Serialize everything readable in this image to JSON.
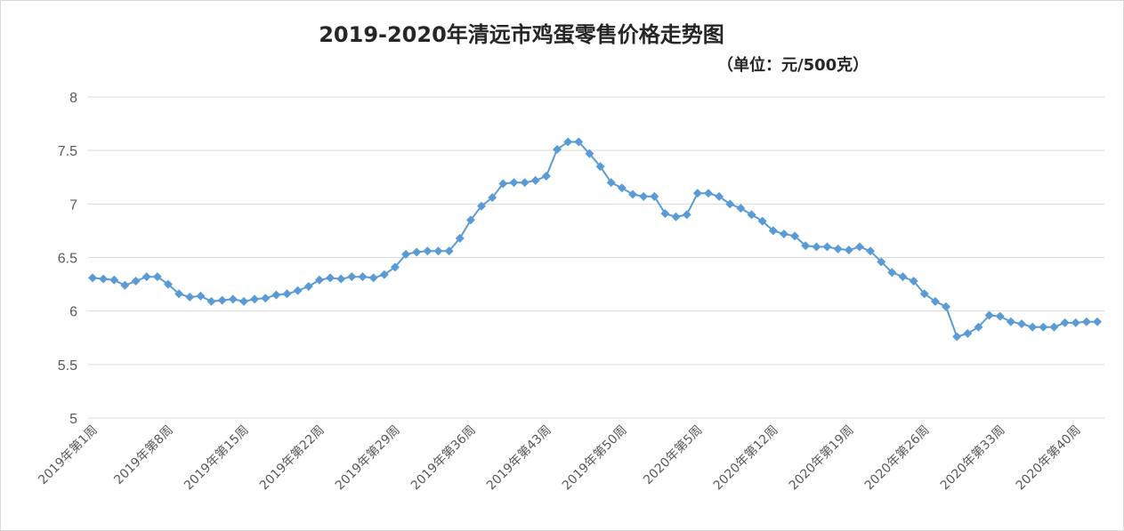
{
  "chart_data": {
    "type": "line",
    "title": "2019-2020年清远市鸡蛋零售价格走势图",
    "subtitle": "（单位：元/500克）",
    "ylim": [
      5,
      8
    ],
    "yticks": [
      5,
      5.5,
      6,
      6.5,
      7,
      7.5,
      8
    ],
    "grid": true,
    "legend": "none",
    "series": [
      {
        "color": "#5b9bd5",
        "marker": "diamond",
        "values": [
          6.31,
          6.3,
          6.29,
          6.24,
          6.28,
          6.32,
          6.32,
          6.25,
          6.16,
          6.13,
          6.14,
          6.09,
          6.1,
          6.11,
          6.09,
          6.11,
          6.12,
          6.15,
          6.16,
          6.19,
          6.23,
          6.29,
          6.31,
          6.3,
          6.32,
          6.32,
          6.31,
          6.34,
          6.41,
          6.53,
          6.55,
          6.56,
          6.56,
          6.56,
          6.68,
          6.85,
          6.98,
          7.06,
          7.19,
          7.2,
          7.2,
          7.22,
          7.26,
          7.51,
          7.58,
          7.58,
          7.47,
          7.35,
          7.2,
          7.15,
          7.09,
          7.07,
          7.07,
          6.91,
          6.88,
          6.9,
          7.1,
          7.1,
          7.07,
          7.0,
          6.96,
          6.9,
          6.84,
          6.75,
          6.72,
          6.7,
          6.61,
          6.6,
          6.6,
          6.58,
          6.57,
          6.6,
          6.56,
          6.46,
          6.36,
          6.32,
          6.28,
          6.16,
          6.09,
          6.04,
          5.76,
          5.79,
          5.85,
          5.96,
          5.95,
          5.9,
          5.88,
          5.85,
          5.85,
          5.85,
          5.89,
          5.89,
          5.9,
          5.9
        ]
      }
    ],
    "x_tick_labels": [
      {
        "index": 0,
        "label": "2019年第1周"
      },
      {
        "index": 7,
        "label": "2019年第8周"
      },
      {
        "index": 14,
        "label": "2019年第15周"
      },
      {
        "index": 21,
        "label": "2019年第22周"
      },
      {
        "index": 28,
        "label": "2019年第29周"
      },
      {
        "index": 35,
        "label": "2019年第36周"
      },
      {
        "index": 42,
        "label": "2019年第43周"
      },
      {
        "index": 49,
        "label": "2019年第50周"
      },
      {
        "index": 56,
        "label": "2020年第5周"
      },
      {
        "index": 63,
        "label": "2020年第12周"
      },
      {
        "index": 70,
        "label": "2020年第19周"
      },
      {
        "index": 77,
        "label": "2020年第26周"
      },
      {
        "index": 84,
        "label": "2020年第33周"
      },
      {
        "index": 91,
        "label": "2020年第40周"
      }
    ]
  }
}
